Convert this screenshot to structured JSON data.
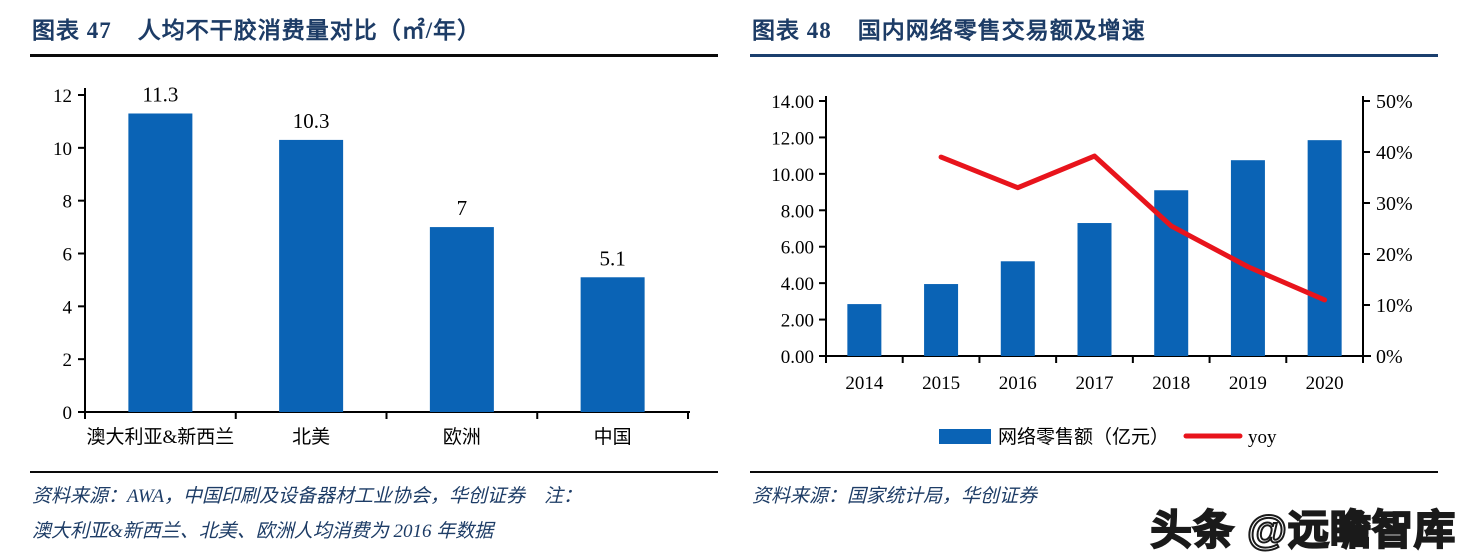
{
  "colors": {
    "title_navy": "#1D3C66",
    "rule_black": "#0A0A0A",
    "rule_navy": "#1B3F6E",
    "bar_blue": "#0A63B5",
    "line_red": "#E8141C",
    "axis": "#000000"
  },
  "panels": {
    "left": {
      "figure_label": "图表 47",
      "title": "人均不干胶消费量对比（㎡/年）",
      "source_lines": [
        "资料来源：AWA，中国印刷及设备器材工业协会，华创证券　注：",
        "澳大利亚&新西兰、北美、欧洲人均消费为 2016 年数据"
      ]
    },
    "right": {
      "figure_label": "图表 48",
      "title": "国内网络零售交易额及增速",
      "source_lines": [
        "资料来源：国家统计局，华创证券"
      ]
    }
  },
  "watermark": {
    "text": "头条 @远瞻智库"
  },
  "chart_data": [
    {
      "type": "bar",
      "figure": "图表 47",
      "title": "人均不干胶消费量对比（㎡/年）",
      "categories": [
        "澳大利亚&新西兰",
        "北美",
        "欧洲",
        "中国"
      ],
      "values": [
        11.3,
        10.3,
        7,
        5.1
      ],
      "data_labels": [
        "11.3",
        "10.3",
        "7",
        "5.1"
      ],
      "ylim": [
        0,
        12
      ],
      "ytick_values": [
        0,
        2,
        4,
        6,
        8,
        10,
        12
      ],
      "ytick_labels": [
        "0",
        "2",
        "4",
        "6",
        "8",
        "10",
        "12"
      ],
      "grid": false,
      "legend_position": "none"
    },
    {
      "type": "bar+line",
      "figure": "图表 48",
      "title": "国内网络零售交易额及增速",
      "categories": [
        "2014",
        "2015",
        "2016",
        "2017",
        "2018",
        "2019",
        "2020"
      ],
      "series": [
        {
          "name": "网络零售额（亿元）",
          "kind": "bar",
          "axis": "left",
          "values": [
            2.85,
            3.95,
            5.2,
            7.3,
            9.1,
            10.75,
            11.85
          ]
        },
        {
          "name": "yoy",
          "kind": "line",
          "axis": "right",
          "values": [
            null,
            39,
            33,
            39.2,
            25.5,
            17.5,
            11
          ]
        }
      ],
      "left_axis": {
        "min": 0,
        "max": 14,
        "tick_values": [
          0,
          2,
          4,
          6,
          8,
          10,
          12,
          14
        ],
        "tick_labels": [
          "0.00",
          "2.00",
          "4.00",
          "6.00",
          "8.00",
          "10.00",
          "12.00",
          "14.00"
        ]
      },
      "right_axis": {
        "min": 0,
        "max": 50,
        "tick_values": [
          0,
          10,
          20,
          30,
          40,
          50
        ],
        "tick_labels": [
          "0%",
          "10%",
          "20%",
          "30%",
          "40%",
          "50%"
        ]
      },
      "legend": [
        "网络零售额（亿元）",
        "yoy"
      ],
      "grid": false,
      "legend_position": "bottom"
    }
  ]
}
